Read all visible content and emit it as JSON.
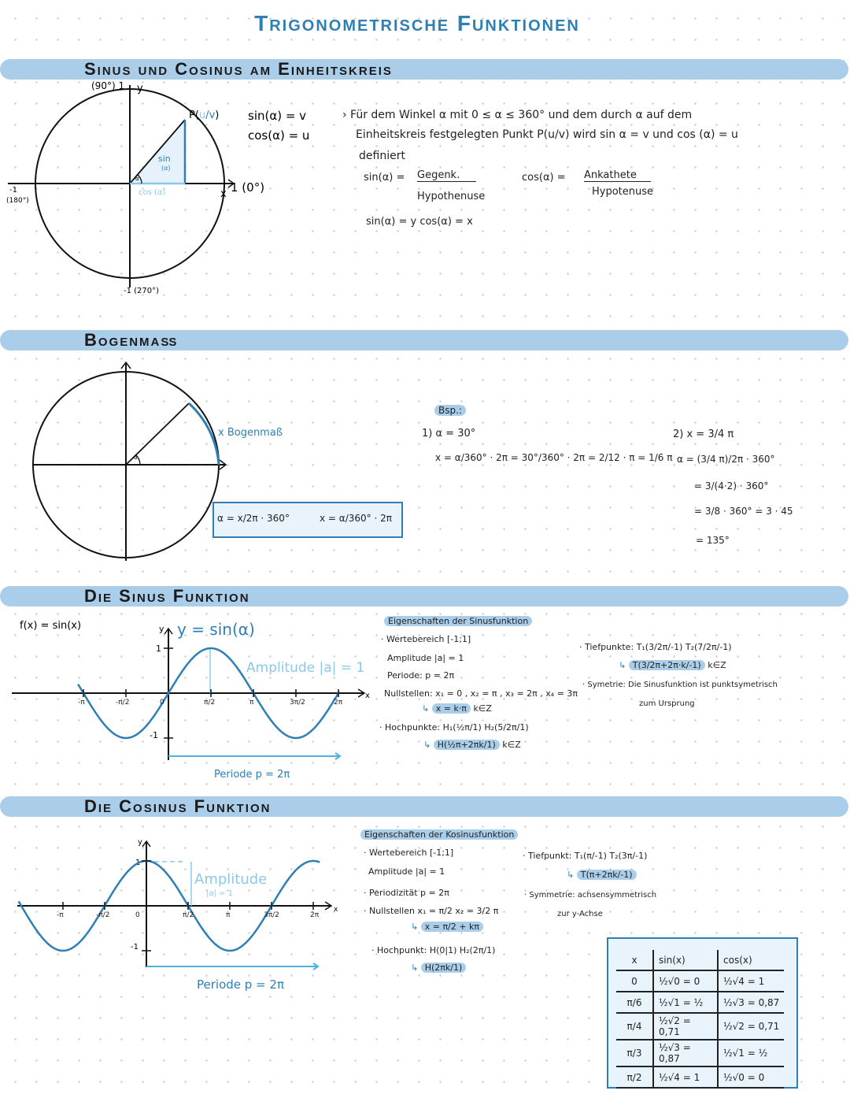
{
  "title": "Trigonometrische Funktionen",
  "sections": [
    {
      "title": "Sinus und Cosinus am Einheitskreis"
    },
    {
      "title": "Bogenmaß"
    },
    {
      "title": "Die Sinus Funktion"
    },
    {
      "title": "Die Cosinus Funktion"
    }
  ],
  "colors": {
    "accent": "#2f7fb5",
    "light_accent": "#8cc8ea",
    "band": "#aacde9"
  },
  "unit_circle": {
    "top_label": "(90°) 1",
    "y_label": "y",
    "x_label": "x",
    "right_label": "1 (0°)",
    "left_label": "-1",
    "left_deg": "(180°)",
    "bottom_label": "-1 (270°)",
    "point_p": "P(",
    "point_u": "u",
    "point_sep": "/",
    "point_v": "v",
    "point_close": ")",
    "sin_tri": "sin",
    "sin_tri_arg": "(α)",
    "cos_tri": "cos (α)",
    "angle": "α",
    "sin_eq": "sin(α) = v",
    "cos_eq": "cos(α) = u"
  },
  "definition": {
    "line1": "› Für dem Winkel α mit 0 ≤ α ≤ 360° und dem durch α auf dem",
    "line2": "Einheitskreis festgelegten Punkt P(u/v) wird sin α = v und cos (α) = u",
    "line3": "definiert",
    "sin_lhs": "sin(α) =",
    "sin_num": "Gegenk.",
    "sin_den": "Hypothenuse",
    "cos_lhs": "cos(α) =",
    "cos_num": "Ankathete",
    "cos_den": "Hypotenuse",
    "short": "sin(α) = y    cos(α) = x"
  },
  "bogenmass": {
    "arc_label": "x Bogenmaß",
    "angle": "α",
    "formula1": "α = x/2π · 360°",
    "formula2": "x = α/360° · 2π",
    "example_tag": "Bsp.:",
    "ex1_head": "1) α = 30°",
    "ex1_calc": "x = α/360° · 2π = 30°/360° · 2π = 2/12 · π = 1/6 π",
    "ex2_head": "2) x = 3/4 π",
    "ex2_l1": "α = (3/4 π)/2π · 360°",
    "ex2_l2": "= 3/(4·2) · 360°",
    "ex2_l3": "= 3/8 · 360° = 3 · 45",
    "ex2_l4": "= 135°"
  },
  "sine": {
    "f_label": "f(x) = sin(x)",
    "curve_label": "y = sin(α)",
    "y_axis": "y",
    "x_axis": "x",
    "y_ticks": [
      "1",
      "-1"
    ],
    "x_ticks": [
      "-π",
      "-π/2",
      "0",
      "π/2",
      "π",
      "3π/2",
      "2π"
    ],
    "amplitude": "Amplitude |a| = 1",
    "period": "Periode p = 2π",
    "props_title": "Eigenschaften der Sinusfunktion",
    "props": [
      "· Wertebereich [-1;1]",
      "Amplitude |a| = 1",
      "Periode: p = 2π",
      "Nullstellen: x₁ = 0 , x₂ = π , x₃ = 2π , x₄ = 3π"
    ],
    "zeros_general": "x = k·π",
    "kz": "k∈Z",
    "max_line": "· Hochpunkte: H₁(½π/1)  H₂(5/2π/1)",
    "max_general": "H(½π+2πk/1)",
    "min_line": "· Tiefpunkte: T₁(3/2π/-1)  T₂(7/2π/-1)",
    "min_general": "T(3/2π+2π·k/-1)",
    "sym_line": "· Symetrie: Die Sinusfunktion ist punktsymetrisch",
    "sym_line2": "zum Ursprung",
    "arrow": "↳"
  },
  "cosine": {
    "y_axis": "y",
    "x_axis": "x",
    "y_ticks": [
      "1",
      "-1"
    ],
    "x_ticks": [
      "-π",
      "-π/2",
      "0",
      "π/2",
      "π",
      "3π/2",
      "2π"
    ],
    "amplitude": "Amplitude",
    "amplitude2": "|a| = 1",
    "period": "Periode p = 2π",
    "props_title": "Eigenschaften der Kosinusfunktion",
    "props": [
      "· Wertebereich [-1;1]",
      "Amplitude |a| = 1",
      "· Periodizität p = 2π",
      "· Nullstellen x₁ = π/2   x₂ = 3/2 π"
    ],
    "zeros_general": "x = π/2 + kπ",
    "max_line": "· Hochpunkt: H(0|1)  H₂(2π/1)",
    "max_general": "H(2πk/1)",
    "min_line": "· Tiefpunkt: T₁(π/-1)  T₂(3π/-1)",
    "min_general": "T(π+2πk/-1)",
    "sym_line": "· Symmetrie: achsensymmetrisch",
    "sym_line2": "zur y-Achse",
    "arrow": "↳"
  },
  "table": {
    "headers": [
      "x",
      "sin(x)",
      "cos(x)"
    ],
    "rows": [
      [
        "0",
        "½√0 = 0",
        "½√4 = 1"
      ],
      [
        "π/6",
        "½√1 = ½",
        "½√3 = 0,87"
      ],
      [
        "π/4",
        "½√2 = 0,71",
        "½√2 = 0,71"
      ],
      [
        "π/3",
        "½√3 = 0,87",
        "½√1 = ½"
      ],
      [
        "π/2",
        "½√4 = 1",
        "½√0 = 0"
      ]
    ]
  }
}
